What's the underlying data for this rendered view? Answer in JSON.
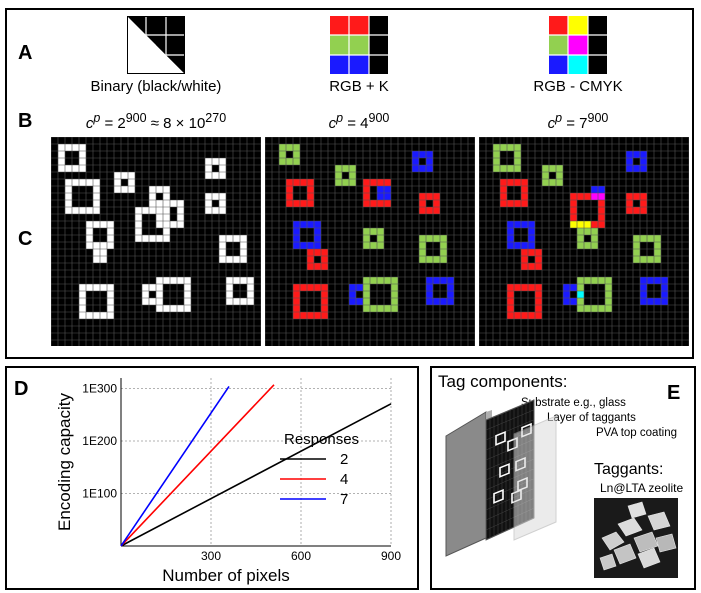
{
  "labels": {
    "a": "A",
    "b": "B",
    "c": "C",
    "d": "D",
    "e": "E"
  },
  "schemes": [
    {
      "title": "Binary (black/white)",
      "cap_var": "c",
      "cap_sup_var": "p",
      "cap_rest": " = 2",
      "cap_exp": "900",
      "cap_tail": " ≈ 8 × 10",
      "cap_tail_exp": "270"
    },
    {
      "title": "RGB + K",
      "cap_var": "c",
      "cap_sup_var": "p",
      "cap_rest": " = 4",
      "cap_exp": "900",
      "cap_tail": "",
      "cap_tail_exp": ""
    },
    {
      "title": "RGB - CMYK",
      "cap_var": "c",
      "cap_sup_var": "p",
      "cap_rest": " = 7",
      "cap_exp": "900",
      "cap_tail": "",
      "cap_tail_exp": ""
    }
  ],
  "colors": {
    "black": "#000000",
    "white": "#ffffff",
    "red": "#ff1a1a",
    "green": "#92d050",
    "blue": "#1a1aff",
    "yellow": "#ffff00",
    "magenta": "#ff00ff",
    "cyan": "#00ffff",
    "grid": "#555555",
    "gray": "#808080"
  },
  "chart_data": {
    "type": "line",
    "xlabel": "Number of pixels",
    "ylabel": "Encoding capacity",
    "x_ticks": [
      "300",
      "600",
      "900"
    ],
    "y_ticks": [
      "1E100",
      "1E200",
      "1E300"
    ],
    "xlim": [
      0,
      900
    ],
    "ylim_log10": [
      0,
      320
    ],
    "legend_title": "Responses",
    "series": [
      {
        "name": "2",
        "color": "#000000",
        "x": [
          0,
          900
        ],
        "log10_y": [
          0,
          270.9
        ]
      },
      {
        "name": "4",
        "color": "#ff0000",
        "x": [
          0,
          510
        ],
        "log10_y": [
          0,
          307
        ]
      },
      {
        "name": "7",
        "color": "#0000ff",
        "x": [
          0,
          360
        ],
        "log10_y": [
          0,
          304
        ]
      }
    ]
  },
  "tag": {
    "title": "Tag components:",
    "layer1": "Substrate e.g., glass",
    "layer2": "Layer of taggants",
    "layer3": "PVA top coating",
    "taggants_title": "Taggants:",
    "taggants_sub": "Ln@LTA zeolite"
  }
}
